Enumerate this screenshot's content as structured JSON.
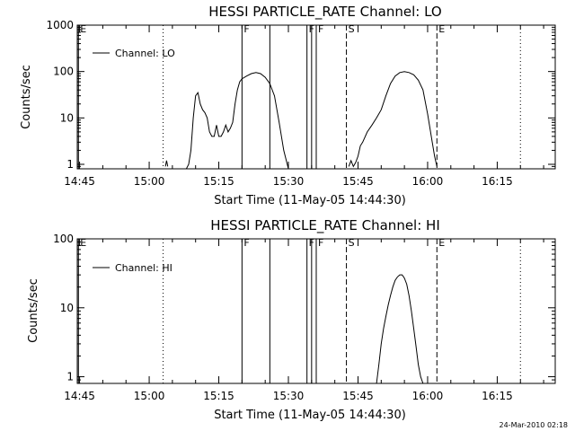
{
  "chart_data": [
    {
      "type": "line",
      "title": "HESSI PARTICLE_RATE Channel: LO",
      "xlabel": "Start Time (11-May-05 14:44:30)",
      "ylabel": "Counts/sec",
      "xlim": [
        "14:44:30",
        "16:27:30"
      ],
      "ylim": [
        0.8,
        1000
      ],
      "y_scale": "log",
      "x_ticks": [
        "14:45",
        "15:00",
        "15:15",
        "15:30",
        "15:45",
        "16:00",
        "16:15"
      ],
      "y_ticks": [
        "1",
        "10",
        "100",
        "1000"
      ],
      "legend": {
        "entries": [
          "Channel: LO"
        ],
        "placement": "top-left"
      },
      "grid": false,
      "markers": [
        {
          "time": "14:44:45",
          "label": "E",
          "style": "solid"
        },
        {
          "time": "15:03:00",
          "label": "",
          "style": "dotted"
        },
        {
          "time": "15:20:00",
          "label": "F",
          "style": "solid"
        },
        {
          "time": "15:26:00",
          "label": "",
          "style": "solid"
        },
        {
          "time": "15:34:00",
          "label": "F",
          "style": "solid"
        },
        {
          "time": "15:35:00",
          "label": "",
          "style": "solid"
        },
        {
          "time": "15:36:00",
          "label": "F",
          "style": "solid"
        },
        {
          "time": "15:42:30",
          "label": "S",
          "style": "dashed"
        },
        {
          "time": "16:02:00",
          "label": "E",
          "style": "dashed"
        },
        {
          "time": "16:20:00",
          "label": "",
          "style": "dotted"
        }
      ],
      "series": [
        {
          "segments": [
            {
              "x": [
                "15:03:30",
                "15:03:45",
                "15:04:00"
              ],
              "y": [
                0.9,
                1.2,
                0.9
              ]
            },
            {
              "x": [
                "15:08:00",
                "15:08:30",
                "15:09:00",
                "15:09:30",
                "15:10:00",
                "15:10:30",
                "15:11:00",
                "15:11:30",
                "15:12:00",
                "15:12:30",
                "15:13:00",
                "15:13:30",
                "15:14:00",
                "15:14:30",
                "15:15:00",
                "15:15:30",
                "15:16:00",
                "15:16:30",
                "15:17:00",
                "15:17:30",
                "15:18:00",
                "15:18:30",
                "15:19:00",
                "15:19:30",
                "15:20:00",
                "15:21:00",
                "15:22:00",
                "15:23:00",
                "15:24:00",
                "15:25:00",
                "15:26:00",
                "15:27:00",
                "15:28:00",
                "15:29:00",
                "15:30:00"
              ],
              "y": [
                0.8,
                1.0,
                2,
                10,
                30,
                35,
                20,
                15,
                13,
                10,
                5,
                4,
                4,
                7,
                4,
                4,
                5,
                7,
                5,
                6,
                8,
                20,
                40,
                60,
                70,
                80,
                90,
                95,
                90,
                75,
                55,
                30,
                8,
                2,
                0.8
              ]
            },
            {
              "x": [
                "15:43:00",
                "15:43:30",
                "15:44:00",
                "15:44:30",
                "15:45:00",
                "15:45:30",
                "15:46:00",
                "15:47:00",
                "15:48:00",
                "15:49:00",
                "15:50:00",
                "15:51:00",
                "15:52:00",
                "15:53:00",
                "15:54:00",
                "15:55:00",
                "15:56:00",
                "15:57:00",
                "15:58:00",
                "15:59:00",
                "16:00:00",
                "16:01:00",
                "16:01:30",
                "16:02:00"
              ],
              "y": [
                0.9,
                1.2,
                0.9,
                1.1,
                1.5,
                2.5,
                3,
                5,
                7,
                10,
                15,
                30,
                55,
                80,
                95,
                100,
                95,
                85,
                65,
                40,
                12,
                3,
                1.5,
                0.9
              ]
            }
          ]
        }
      ]
    },
    {
      "type": "line",
      "title": "HESSI PARTICLE_RATE Channel: HI",
      "xlabel": "Start Time (11-May-05 14:44:30)",
      "ylabel": "Counts/sec",
      "xlim": [
        "14:44:30",
        "16:27:30"
      ],
      "ylim": [
        0.8,
        100
      ],
      "y_scale": "log",
      "x_ticks": [
        "14:45",
        "15:00",
        "15:15",
        "15:30",
        "15:45",
        "16:00",
        "16:15"
      ],
      "y_ticks": [
        "1",
        "10",
        "100"
      ],
      "legend": {
        "entries": [
          "Channel: HI"
        ],
        "placement": "top-left"
      },
      "grid": false,
      "markers": [
        {
          "time": "14:44:45",
          "label": "E",
          "style": "solid"
        },
        {
          "time": "15:03:00",
          "label": "",
          "style": "dotted"
        },
        {
          "time": "15:20:00",
          "label": "F",
          "style": "solid"
        },
        {
          "time": "15:26:00",
          "label": "",
          "style": "solid"
        },
        {
          "time": "15:34:00",
          "label": "F",
          "style": "solid"
        },
        {
          "time": "15:35:00",
          "label": "",
          "style": "solid"
        },
        {
          "time": "15:36:00",
          "label": "F",
          "style": "solid"
        },
        {
          "time": "15:42:30",
          "label": "S",
          "style": "dashed"
        },
        {
          "time": "16:02:00",
          "label": "E",
          "style": "dashed"
        },
        {
          "time": "16:20:00",
          "label": "",
          "style": "dotted"
        }
      ],
      "series": [
        {
          "segments": [
            {
              "x": [
                "15:49:00",
                "15:49:30",
                "15:50:00",
                "15:50:30",
                "15:51:00",
                "15:51:30",
                "15:52:00",
                "15:52:30",
                "15:53:00",
                "15:53:30",
                "15:54:00",
                "15:54:30",
                "15:55:00",
                "15:55:30",
                "15:56:00",
                "15:56:30",
                "15:57:00",
                "15:57:30",
                "15:58:00",
                "15:58:30",
                "15:59:00"
              ],
              "y": [
                0.8,
                1.5,
                3,
                5,
                7.5,
                11,
                15,
                20,
                25,
                28,
                30,
                30,
                27,
                22,
                15,
                9,
                5,
                2.8,
                1.5,
                1,
                0.8
              ]
            }
          ]
        }
      ]
    }
  ],
  "footer": {
    "date_stamp": "24-Mar-2010 02:18"
  }
}
